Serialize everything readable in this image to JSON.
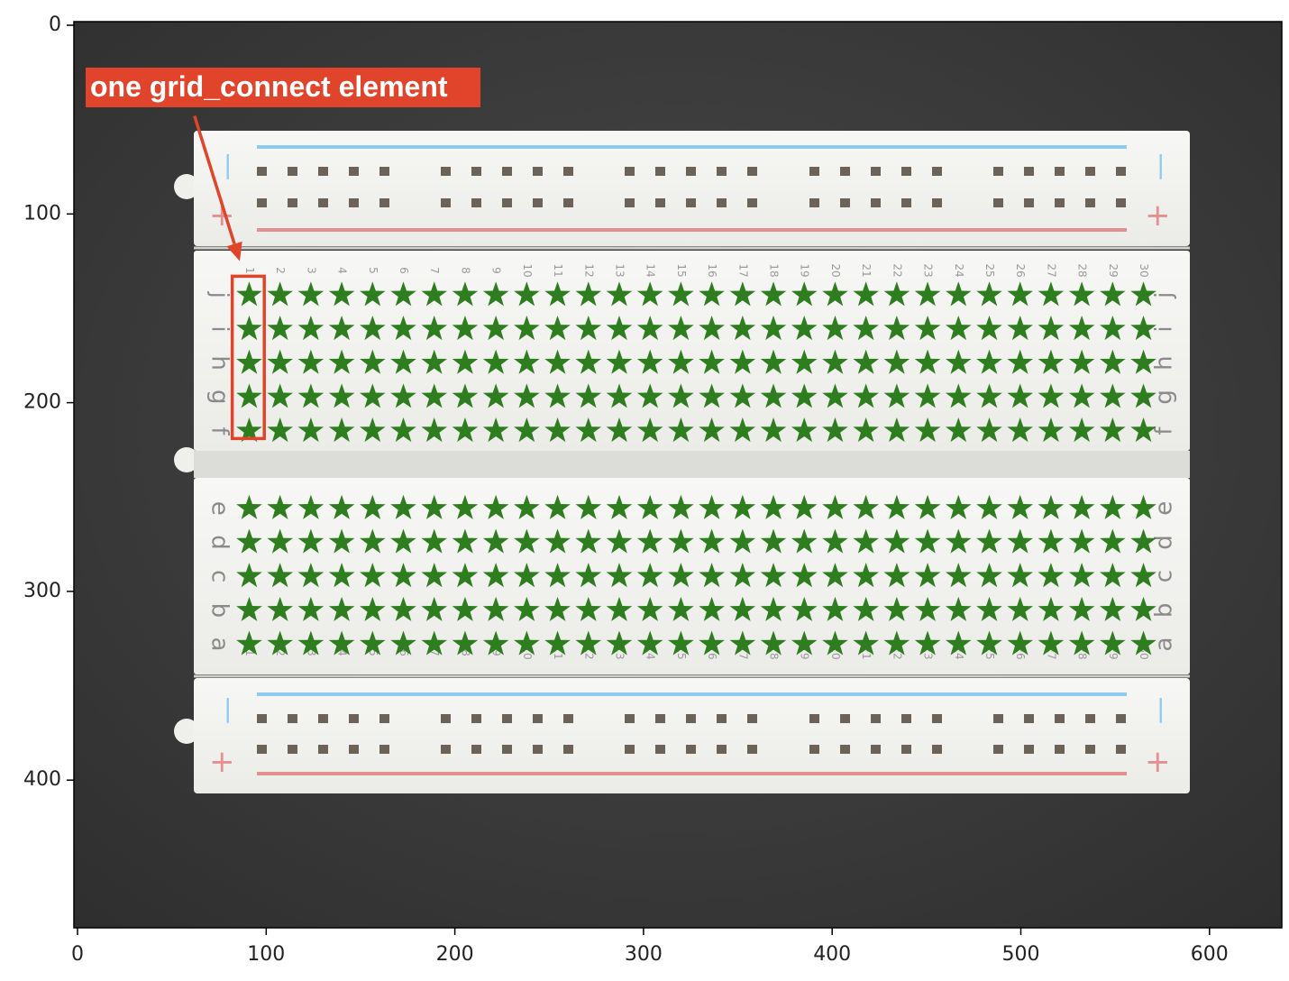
{
  "chart_data": {
    "type": "scatter",
    "marker": "star",
    "marker_color": "#2e7d1f",
    "background": "breadboard-photo",
    "xlim": [
      0,
      640
    ],
    "ylim": [
      480,
      0
    ],
    "xticks": [
      0,
      100,
      200,
      300,
      400,
      500,
      600
    ],
    "yticks": [
      0,
      100,
      200,
      300,
      400
    ],
    "columns": {
      "count": 30,
      "x_first": 91,
      "x_last": 565
    },
    "column_labels": [
      "1",
      "2",
      "3",
      "4",
      "5",
      "6",
      "7",
      "8",
      "9",
      "10",
      "11",
      "12",
      "13",
      "14",
      "15",
      "16",
      "17",
      "18",
      "19",
      "20",
      "21",
      "22",
      "23",
      "24",
      "25",
      "26",
      "27",
      "28",
      "29",
      "30"
    ],
    "upper_block": {
      "row_labels": [
        "j",
        "i",
        "h",
        "g",
        "f"
      ],
      "y_values": [
        143,
        161,
        179,
        197,
        215
      ]
    },
    "lower_block": {
      "row_labels": [
        "e",
        "d",
        "c",
        "b",
        "a"
      ],
      "y_values": [
        256,
        274,
        292,
        310,
        328
      ]
    },
    "annotation": {
      "text": "one grid_connect element",
      "color": "#e0442a",
      "highlight_x_range": [
        82,
        99
      ],
      "highlight_y_range": [
        133,
        219
      ],
      "arrow_from": [
        62,
        48
      ],
      "arrow_to": [
        86,
        125
      ]
    },
    "rail_symbols": {
      "minus": "|",
      "plus": "+"
    }
  }
}
